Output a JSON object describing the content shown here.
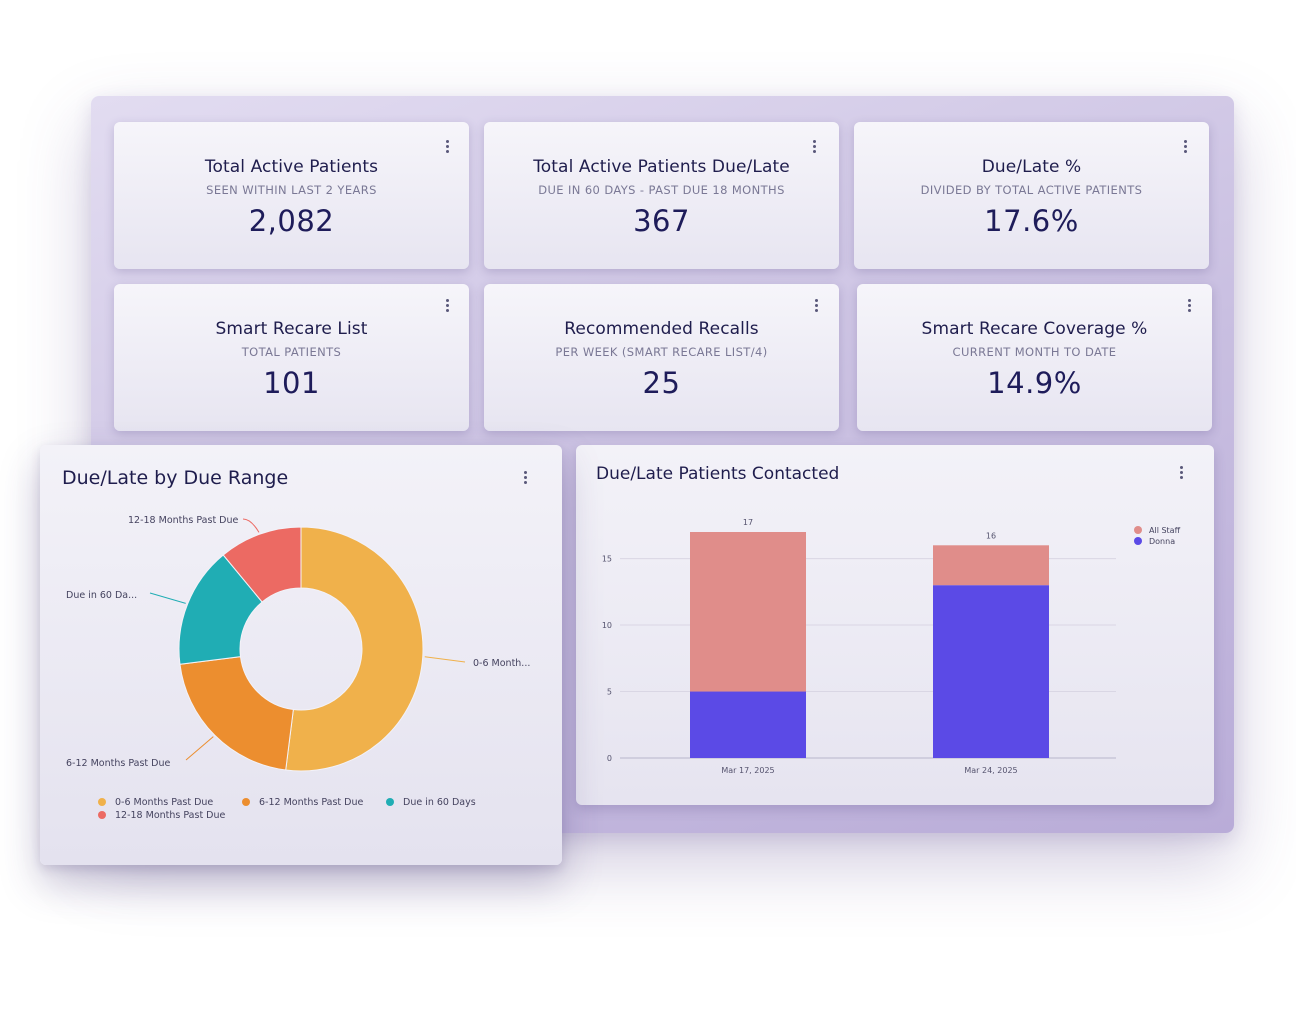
{
  "kpis": [
    {
      "title": "Total Active Patients",
      "subtitle": "SEEN WITHIN LAST 2 YEARS",
      "value": "2,082"
    },
    {
      "title": "Total Active Patients Due/Late",
      "subtitle": "DUE IN 60 DAYS - PAST DUE 18 MONTHS",
      "value": "367"
    },
    {
      "title": "Due/Late %",
      "subtitle": "DIVIDED BY TOTAL ACTIVE PATIENTS",
      "value": "17.6%"
    },
    {
      "title": "Smart Recare List",
      "subtitle": "TOTAL PATIENTS",
      "value": "101"
    },
    {
      "title": "Recommended Recalls",
      "subtitle": "PER WEEK (SMART RECARE LIST/4)",
      "value": "25"
    },
    {
      "title": "Smart Recare Coverage %",
      "subtitle": "CURRENT MONTH TO DATE",
      "value": "14.9%"
    }
  ],
  "icons": {
    "menu": "more-vertical-icon"
  },
  "chart_data": [
    {
      "type": "pie",
      "donut": true,
      "title": "Due/Late by Due Range",
      "slices": [
        {
          "name": "0-6 Months Past Due",
          "value": 52,
          "color": "#f0b14b",
          "label": "0-6 Month..."
        },
        {
          "name": "6-12 Months Past Due",
          "value": 21,
          "color": "#ec8e2f",
          "label": "6-12 Months Past Due"
        },
        {
          "name": "Due in 60 Days",
          "value": 16,
          "color": "#20adb4",
          "label": "Due in 60 Da..."
        },
        {
          "name": "12-18 Months Past Due",
          "value": 11,
          "color": "#ec6a63",
          "label": "12-18 Months Past Due"
        }
      ],
      "legend": "bottom"
    },
    {
      "type": "bar",
      "stacked": true,
      "title": "Due/Late Patients Contacted",
      "categories": [
        "Mar 17, 2025",
        "Mar 24, 2025"
      ],
      "series": [
        {
          "name": "Donna",
          "values": [
            5,
            13
          ],
          "color": "#5b4ae6"
        },
        {
          "name": "All Staff",
          "values": [
            12,
            3
          ],
          "color": "#e08d8a"
        }
      ],
      "totals": [
        "17",
        "16"
      ],
      "yticks": [
        "0",
        "5",
        "10",
        "15"
      ],
      "ylim": [
        0,
        17
      ],
      "grid": true,
      "legend": "top-right"
    }
  ]
}
